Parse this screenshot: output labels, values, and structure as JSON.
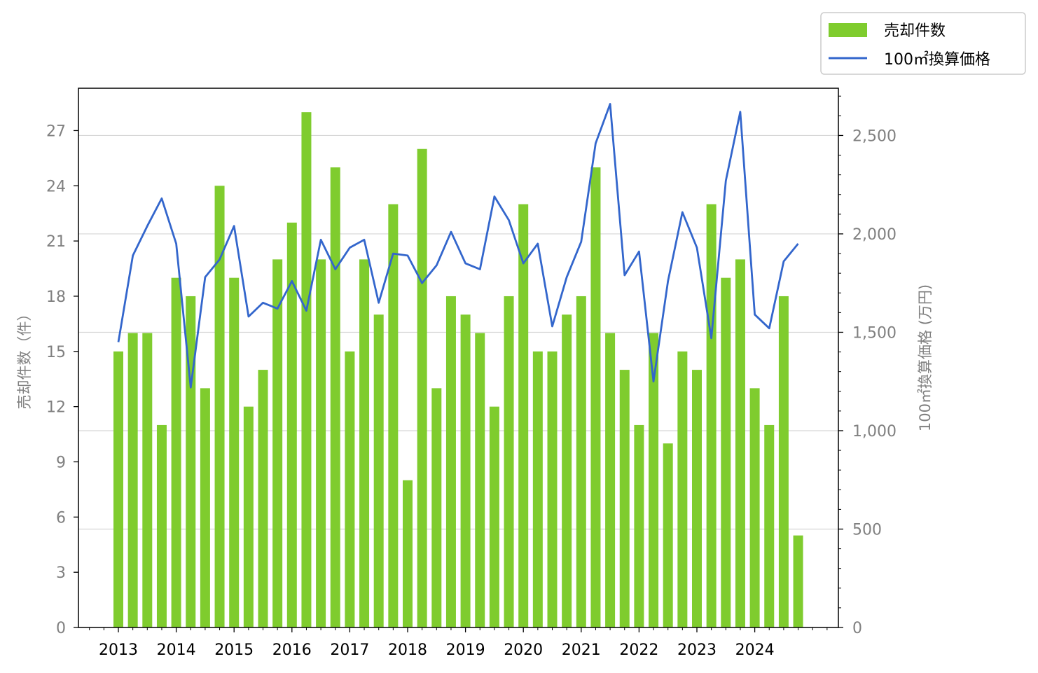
{
  "chart_data": {
    "type": "bar+line",
    "x_ticks": [
      "2013",
      "2014",
      "2015",
      "2016",
      "2017",
      "2018",
      "2019",
      "2020",
      "2021",
      "2022",
      "2023",
      "2024"
    ],
    "bar_series": {
      "name": "売却件数",
      "color": "#7fcc2e",
      "values": [
        15,
        16,
        16,
        11,
        19,
        18,
        13,
        24,
        19,
        12,
        14,
        20,
        22,
        28,
        20,
        25,
        15,
        20,
        17,
        23,
        8,
        26,
        13,
        18,
        17,
        16,
        12,
        18,
        23,
        15,
        15,
        17,
        18,
        25,
        16,
        14,
        11,
        16,
        10,
        15,
        14,
        23,
        19,
        20,
        13,
        11,
        18,
        5
      ]
    },
    "line_series": {
      "name": "100㎡換算価格",
      "color": "#3366cc",
      "values": [
        1450,
        1890,
        2040,
        2180,
        1950,
        1220,
        1780,
        1870,
        2040,
        1580,
        1650,
        1620,
        1760,
        1610,
        1970,
        1820,
        1930,
        1970,
        1650,
        1900,
        1890,
        1750,
        1840,
        2010,
        1850,
        1820,
        2190,
        2070,
        1850,
        1950,
        1530,
        1780,
        1960,
        2460,
        2660,
        1790,
        1910,
        1250,
        1760,
        2110,
        1930,
        1470,
        2270,
        2620,
        1590,
        1520,
        1860,
        1950
      ]
    },
    "y_left": {
      "label": "売却件数（件）",
      "ylim": [
        0,
        29.3
      ],
      "ticks": [
        "0",
        "3",
        "6",
        "9",
        "12",
        "15",
        "18",
        "21",
        "24",
        "27"
      ]
    },
    "y_right": {
      "label": "100㎡換算価格 (万円)",
      "ylim": [
        0,
        2740
      ],
      "ticks": [
        "0",
        "500",
        "1,000",
        "1,500",
        "2,000",
        "2,500"
      ]
    },
    "grid": "horizontal",
    "legend_placement": "top-right, outside plot"
  }
}
